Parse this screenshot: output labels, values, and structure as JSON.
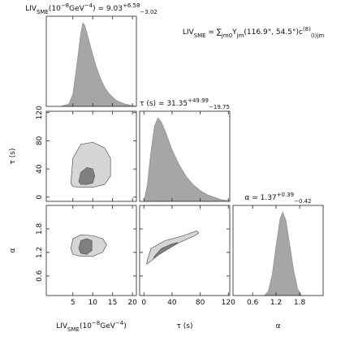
{
  "chart_data": {
    "type": "corner",
    "formula": [
      {
        "text": "LIV"
      },
      {
        "text": "SME",
        "sub": true
      },
      {
        "text": " = "
      },
      {
        "text": "∑"
      },
      {
        "text": "jm",
        "sub": true
      },
      {
        "text": "0",
        "sub": true
      },
      {
        "text": "Y"
      },
      {
        "text": "jm",
        "sub": true
      },
      {
        "text": "(116.9°, 54.5°)"
      },
      {
        "text": "c"
      },
      {
        "text": "(8)",
        "sup": true
      },
      {
        "text": "(I)jm",
        "sub": true
      }
    ],
    "parameters": [
      {
        "label": [
          {
            "text": "LIV"
          },
          {
            "text": "SME",
            "sub": true
          },
          {
            "text": "(10"
          },
          {
            "text": "−8",
            "sup": true
          },
          {
            "text": "GeV"
          },
          {
            "text": "−4",
            "sup": true
          },
          {
            "text": ")"
          }
        ],
        "title": [
          {
            "text": "LIV"
          },
          {
            "text": "SME",
            "sub": true
          },
          {
            "text": "(10"
          },
          {
            "text": "−8",
            "sup": true
          },
          {
            "text": "GeV"
          },
          {
            "text": "−4",
            "sup": true
          },
          {
            "text": ") = 9.03"
          },
          {
            "text": "+6.58",
            "sup": true
          },
          {
            "text": "−3.02",
            "sub": true
          }
        ],
        "lim": [
          -1.7,
          21
        ],
        "ticks": [
          5,
          10,
          15,
          20
        ],
        "density": {
          "x": [
            2,
            4,
            5,
            6,
            7,
            7.5,
            8,
            9,
            10,
            11,
            12,
            13,
            14,
            15,
            16,
            17,
            18,
            19,
            20,
            21
          ],
          "values": [
            0,
            0.03,
            0.15,
            0.5,
            0.88,
            1.0,
            0.97,
            0.8,
            0.62,
            0.46,
            0.33,
            0.23,
            0.16,
            0.11,
            0.07,
            0.05,
            0.03,
            0.02,
            0.01,
            0
          ]
        }
      },
      {
        "label": [
          {
            "text": "τ (s)"
          }
        ],
        "title": [
          {
            "text": "τ (s) = 31.35"
          },
          {
            "text": "+49.99",
            "sup": true
          },
          {
            "text": "−19.75",
            "sub": true
          }
        ],
        "lim": [
          -6,
          122
        ],
        "ticks": [
          0,
          40,
          80,
          120
        ],
        "density": {
          "x": [
            0,
            5,
            10,
            15,
            20,
            25,
            30,
            40,
            50,
            60,
            70,
            80,
            90,
            100,
            110,
            120
          ],
          "values": [
            0,
            0.2,
            0.6,
            0.9,
            1.0,
            0.95,
            0.85,
            0.62,
            0.44,
            0.3,
            0.2,
            0.13,
            0.08,
            0.05,
            0.02,
            0.01
          ]
        }
      },
      {
        "label": [
          {
            "text": "α"
          }
        ],
        "title": [
          {
            "text": "α = 1.37"
          },
          {
            "text": "+0.39",
            "sup": true
          },
          {
            "text": "−0.42",
            "sub": true
          }
        ],
        "lim": [
          0.1,
          2.4
        ],
        "ticks": [
          0.6,
          1.2,
          1.8
        ],
        "density": {
          "x": [
            0.9,
            1.0,
            1.1,
            1.2,
            1.3,
            1.37,
            1.45,
            1.55,
            1.65,
            1.75,
            1.85
          ],
          "values": [
            0,
            0.05,
            0.25,
            0.6,
            0.92,
            1.0,
            0.9,
            0.6,
            0.3,
            0.08,
            0
          ]
        }
      }
    ],
    "contours": [
      {
        "x_param": 0,
        "y_param": 1,
        "levels": [
          {
            "x": [
              4.5,
              5,
              7,
              10,
              13,
              14.5,
              14.5,
              13,
              10,
              7,
              5
            ],
            "y": [
              20,
              55,
              75,
              78,
              70,
              55,
              30,
              18,
              14,
              14,
              15
            ]
          },
          {
            "x": [
              6.5,
              7,
              8.5,
              10,
              10.5,
              10,
              8.5,
              7
            ],
            "y": [
              22,
              35,
              42,
              40,
              30,
              20,
              18,
              18
            ]
          }
        ]
      },
      {
        "x_param": 0,
        "y_param": 2,
        "levels": [
          {
            "x": [
              4.5,
              5,
              7,
              10,
              12.5,
              13.5,
              12.5,
              10,
              7,
              5
            ],
            "y": [
              1.3,
              1.55,
              1.65,
              1.63,
              1.55,
              1.4,
              1.2,
              1.1,
              1.1,
              1.15
            ]
          },
          {
            "x": [
              6.5,
              7,
              8.5,
              9.8,
              9.8,
              8.5,
              7
            ],
            "y": [
              1.3,
              1.5,
              1.55,
              1.5,
              1.25,
              1.15,
              1.18
            ]
          }
        ]
      },
      {
        "x_param": 1,
        "y_param": 2,
        "levels": [
          {
            "x": [
              5,
              10,
              30,
              55,
              75,
              78,
              72,
              50,
              25,
              8,
              4
            ],
            "y": [
              1.0,
              1.3,
              1.5,
              1.62,
              1.75,
              1.7,
              1.62,
              1.45,
              1.2,
              0.95,
              0.9
            ]
          },
          {
            "x": [
              15,
              25,
              40,
              48,
              40,
              22,
              14
            ],
            "y": [
              1.1,
              1.3,
              1.42,
              1.45,
              1.35,
              1.15,
              1.05
            ]
          }
        ]
      }
    ],
    "hist_color": "#a6a6a6",
    "level_colors": [
      "#d6d6d6",
      "#7f7f7f"
    ]
  }
}
